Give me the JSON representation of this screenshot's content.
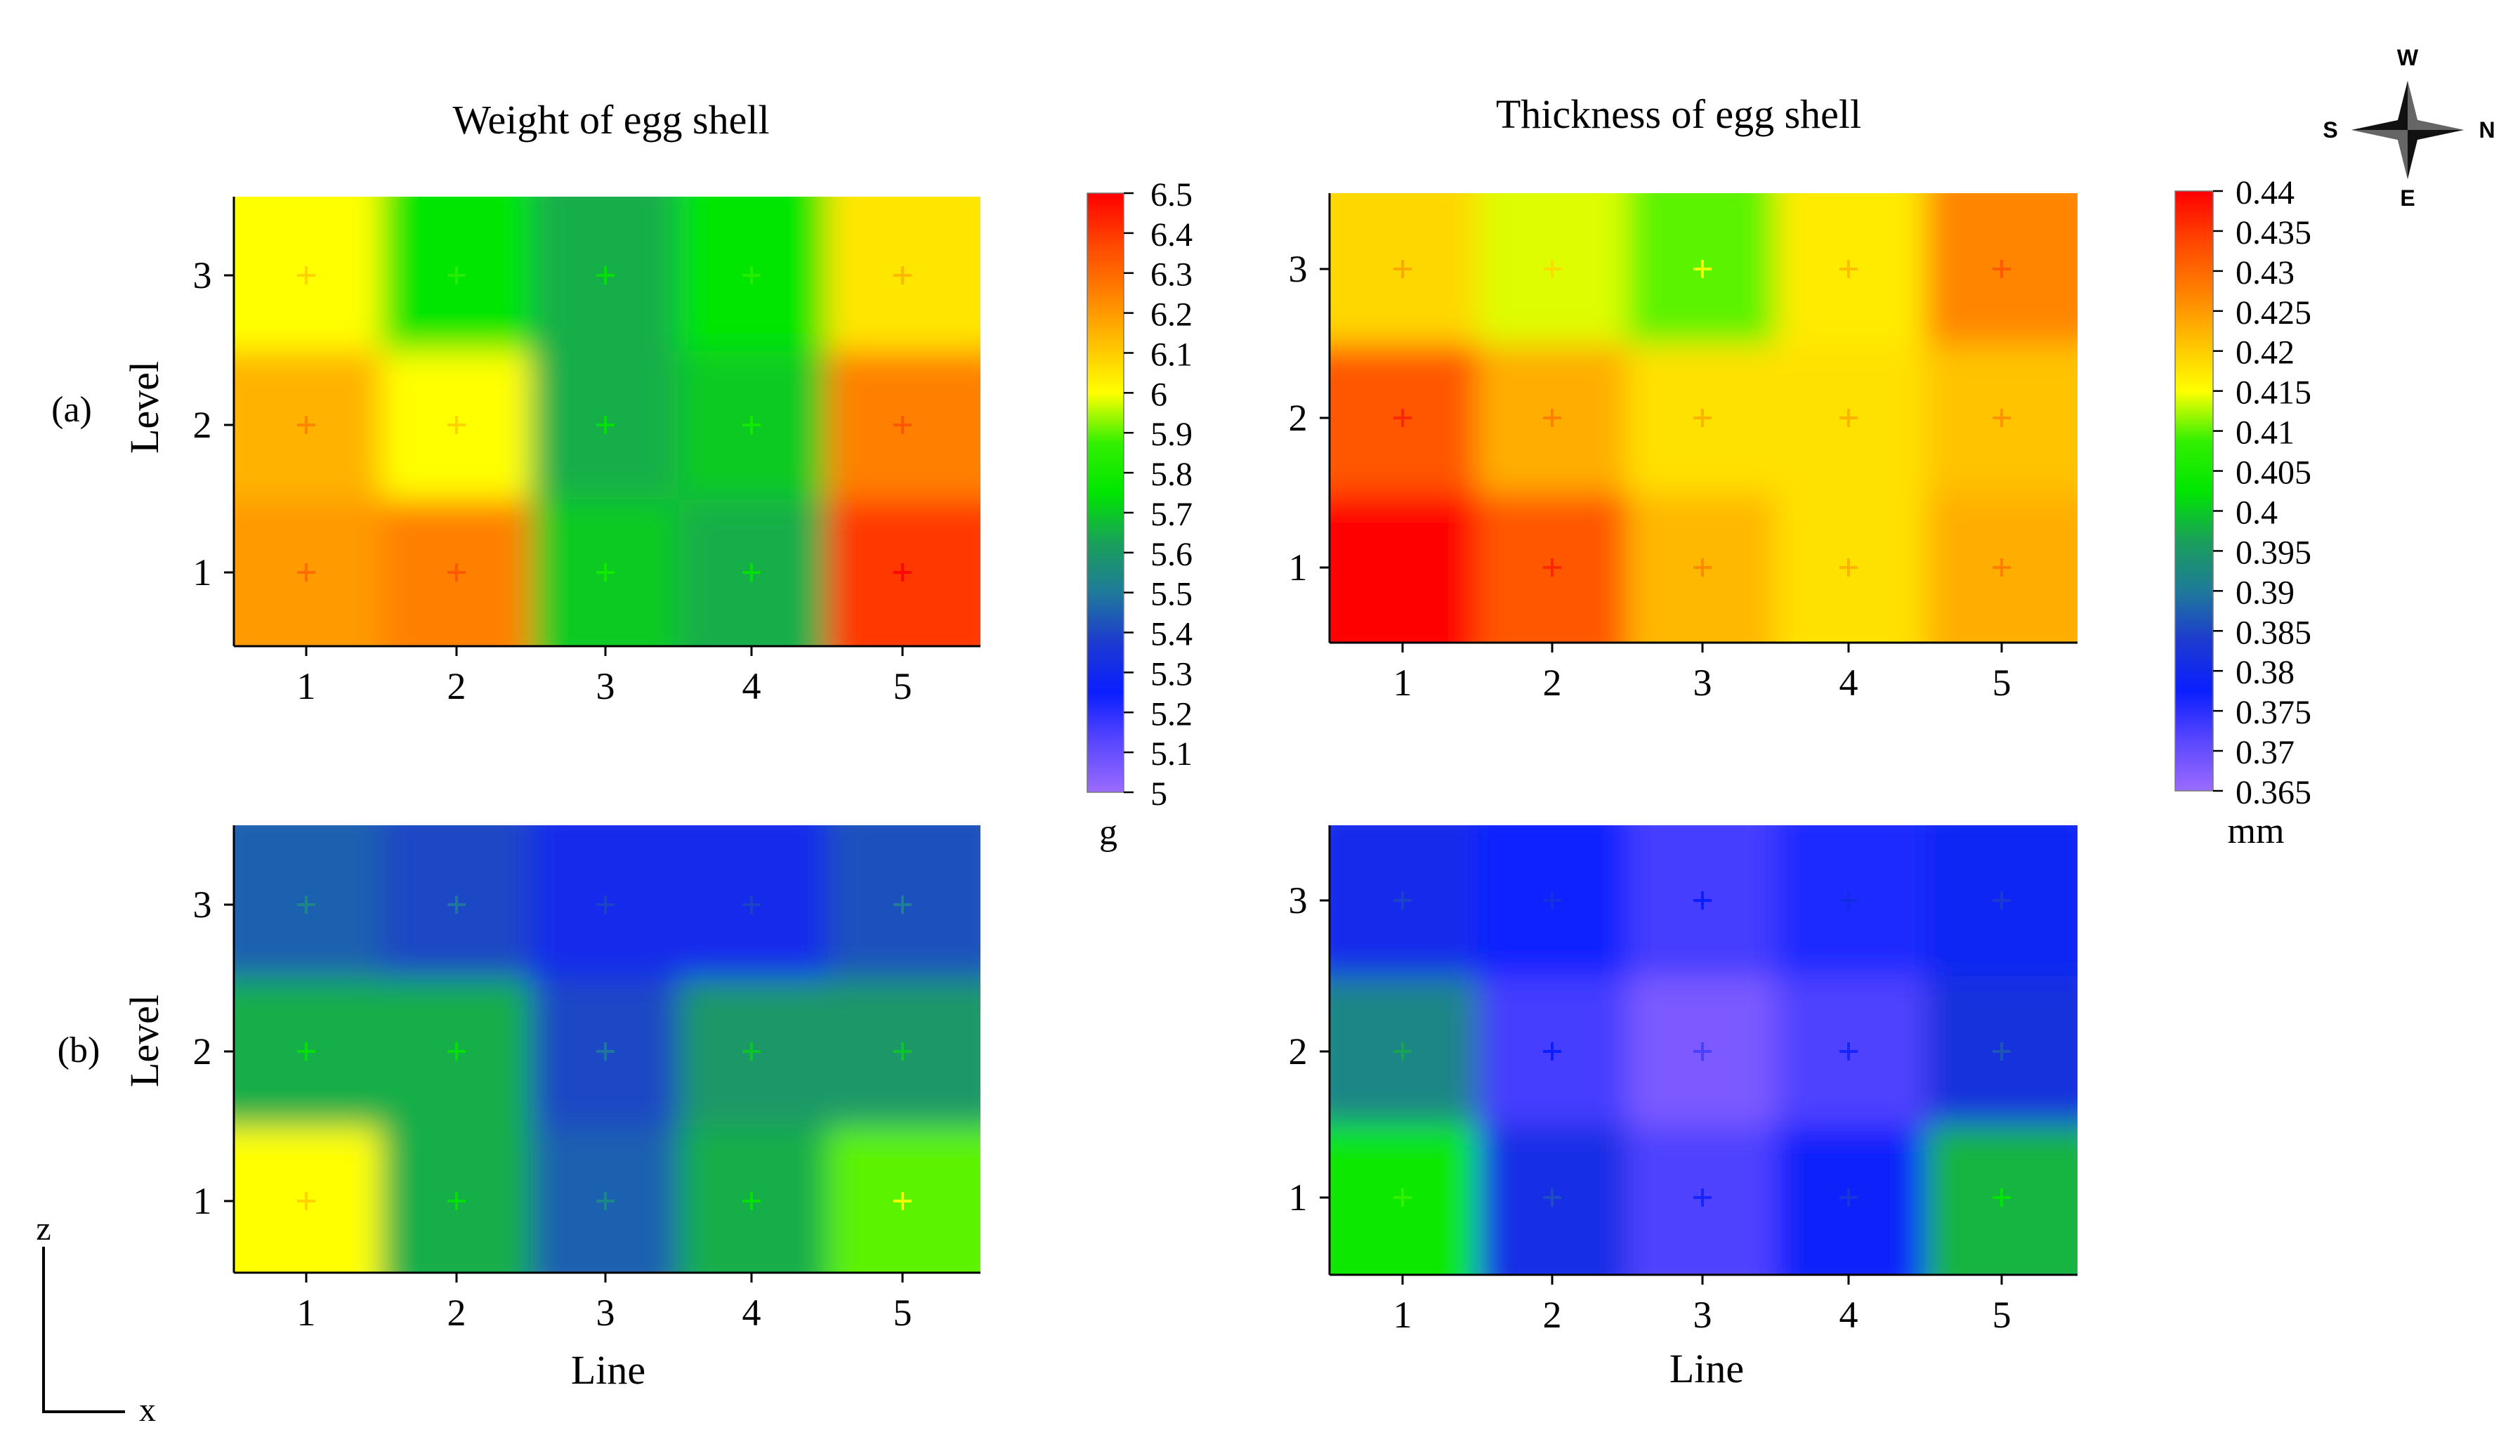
{
  "figure": {
    "row_labels": [
      "(a)",
      "(b)"
    ],
    "compass": {
      "north": "N",
      "south": "S",
      "east": "E",
      "west": "W"
    },
    "axes_indicator": {
      "vertical": "z",
      "horizontal": "x"
    }
  },
  "colors": {
    "weight_scale": [
      "#9b6bff",
      "#5a47ff",
      "#0a1fff",
      "#1d3ad0",
      "#1f7a9a",
      "#1aa05a",
      "#00e600",
      "#33f000",
      "#ffff00",
      "#ffc000",
      "#ff8000",
      "#ff4500",
      "#ff0000"
    ],
    "thickness_scale": [
      "#9b6bff",
      "#5a47ff",
      "#0a1fff",
      "#1d3ad0",
      "#1f7a9a",
      "#1aa05a",
      "#00e600",
      "#33f000",
      "#ffff00",
      "#ffc000",
      "#ff8000",
      "#ff4500",
      "#ff0000"
    ]
  },
  "chart_data": [
    {
      "type": "heatmap",
      "id": "weight_a",
      "title": "Weight of egg shell",
      "row_label": "(a)",
      "xlabel": "",
      "ylabel": "Level",
      "x": [
        1,
        2,
        3,
        4,
        5
      ],
      "y": [
        1,
        2,
        3
      ],
      "x_tick_labels": [
        "1",
        "2",
        "3",
        "4",
        "5"
      ],
      "y_tick_labels": [
        "1",
        "2",
        "3"
      ],
      "z_rows_by_level": [
        [
          6.2,
          6.25,
          5.7,
          5.65,
          6.4
        ],
        [
          6.15,
          6.0,
          5.65,
          5.7,
          6.25
        ],
        [
          6.0,
          5.75,
          5.65,
          5.75,
          6.05
        ]
      ],
      "colorbar": {
        "min": 5.0,
        "max": 6.5,
        "unit": "g",
        "ticks": [
          "6.5",
          "6.4",
          "6.3",
          "6.2",
          "6.1",
          "6",
          "5.9",
          "5.8",
          "5.7",
          "5.6",
          "5.5",
          "5.4",
          "5.3",
          "5.2",
          "5.1",
          "5"
        ]
      }
    },
    {
      "type": "heatmap",
      "id": "thickness_a",
      "title": "Thickness of egg shell",
      "row_label": "(a)",
      "xlabel": "",
      "ylabel": "",
      "x": [
        1,
        2,
        3,
        4,
        5
      ],
      "y": [
        1,
        2,
        3
      ],
      "x_tick_labels": [
        "1",
        "2",
        "3",
        "4",
        "5"
      ],
      "y_tick_labels": [
        "1",
        "2",
        "3"
      ],
      "z_rows_by_level": [
        [
          0.441,
          0.432,
          0.422,
          0.418,
          0.423
        ],
        [
          0.432,
          0.423,
          0.418,
          0.418,
          0.421
        ],
        [
          0.419,
          0.414,
          0.41,
          0.417,
          0.427
        ]
      ],
      "colorbar": {
        "min": 0.365,
        "max": 0.44,
        "unit": "mm",
        "ticks": [
          "0.44",
          "0.435",
          "0.43",
          "0.425",
          "0.42",
          "0.415",
          "0.41",
          "0.405",
          "0.4",
          "0.395",
          "0.39",
          "0.385",
          "0.38",
          "0.375",
          "0.37",
          "0.365"
        ]
      }
    },
    {
      "type": "heatmap",
      "id": "weight_b",
      "row_label": "(b)",
      "xlabel": "Line",
      "ylabel": "Level",
      "x": [
        1,
        2,
        3,
        4,
        5
      ],
      "y": [
        1,
        2,
        3
      ],
      "x_tick_labels": [
        "1",
        "2",
        "3",
        "4",
        "5"
      ],
      "y_tick_labels": [
        "1",
        "2",
        "3"
      ],
      "z_rows_by_level": [
        [
          6.0,
          5.65,
          5.45,
          5.65,
          5.9
        ],
        [
          5.65,
          5.65,
          5.4,
          5.6,
          5.6
        ],
        [
          5.45,
          5.4,
          5.3,
          5.3,
          5.42
        ]
      ],
      "colorbar": {
        "min": 5.0,
        "max": 6.5
      }
    },
    {
      "type": "heatmap",
      "id": "thickness_b",
      "row_label": "(b)",
      "xlabel": "Line",
      "ylabel": "",
      "x": [
        1,
        2,
        3,
        4,
        5
      ],
      "y": [
        1,
        2,
        3
      ],
      "x_tick_labels": [
        "1",
        "2",
        "3",
        "4",
        "5"
      ],
      "y_tick_labels": [
        "1",
        "2",
        "3"
      ],
      "z_rows_by_level": [
        [
          0.404,
          0.381,
          0.372,
          0.378,
          0.398
        ],
        [
          0.392,
          0.373,
          0.368,
          0.372,
          0.382
        ],
        [
          0.38,
          0.377,
          0.373,
          0.376,
          0.379
        ]
      ],
      "colorbar": {
        "min": 0.365,
        "max": 0.44
      }
    }
  ]
}
